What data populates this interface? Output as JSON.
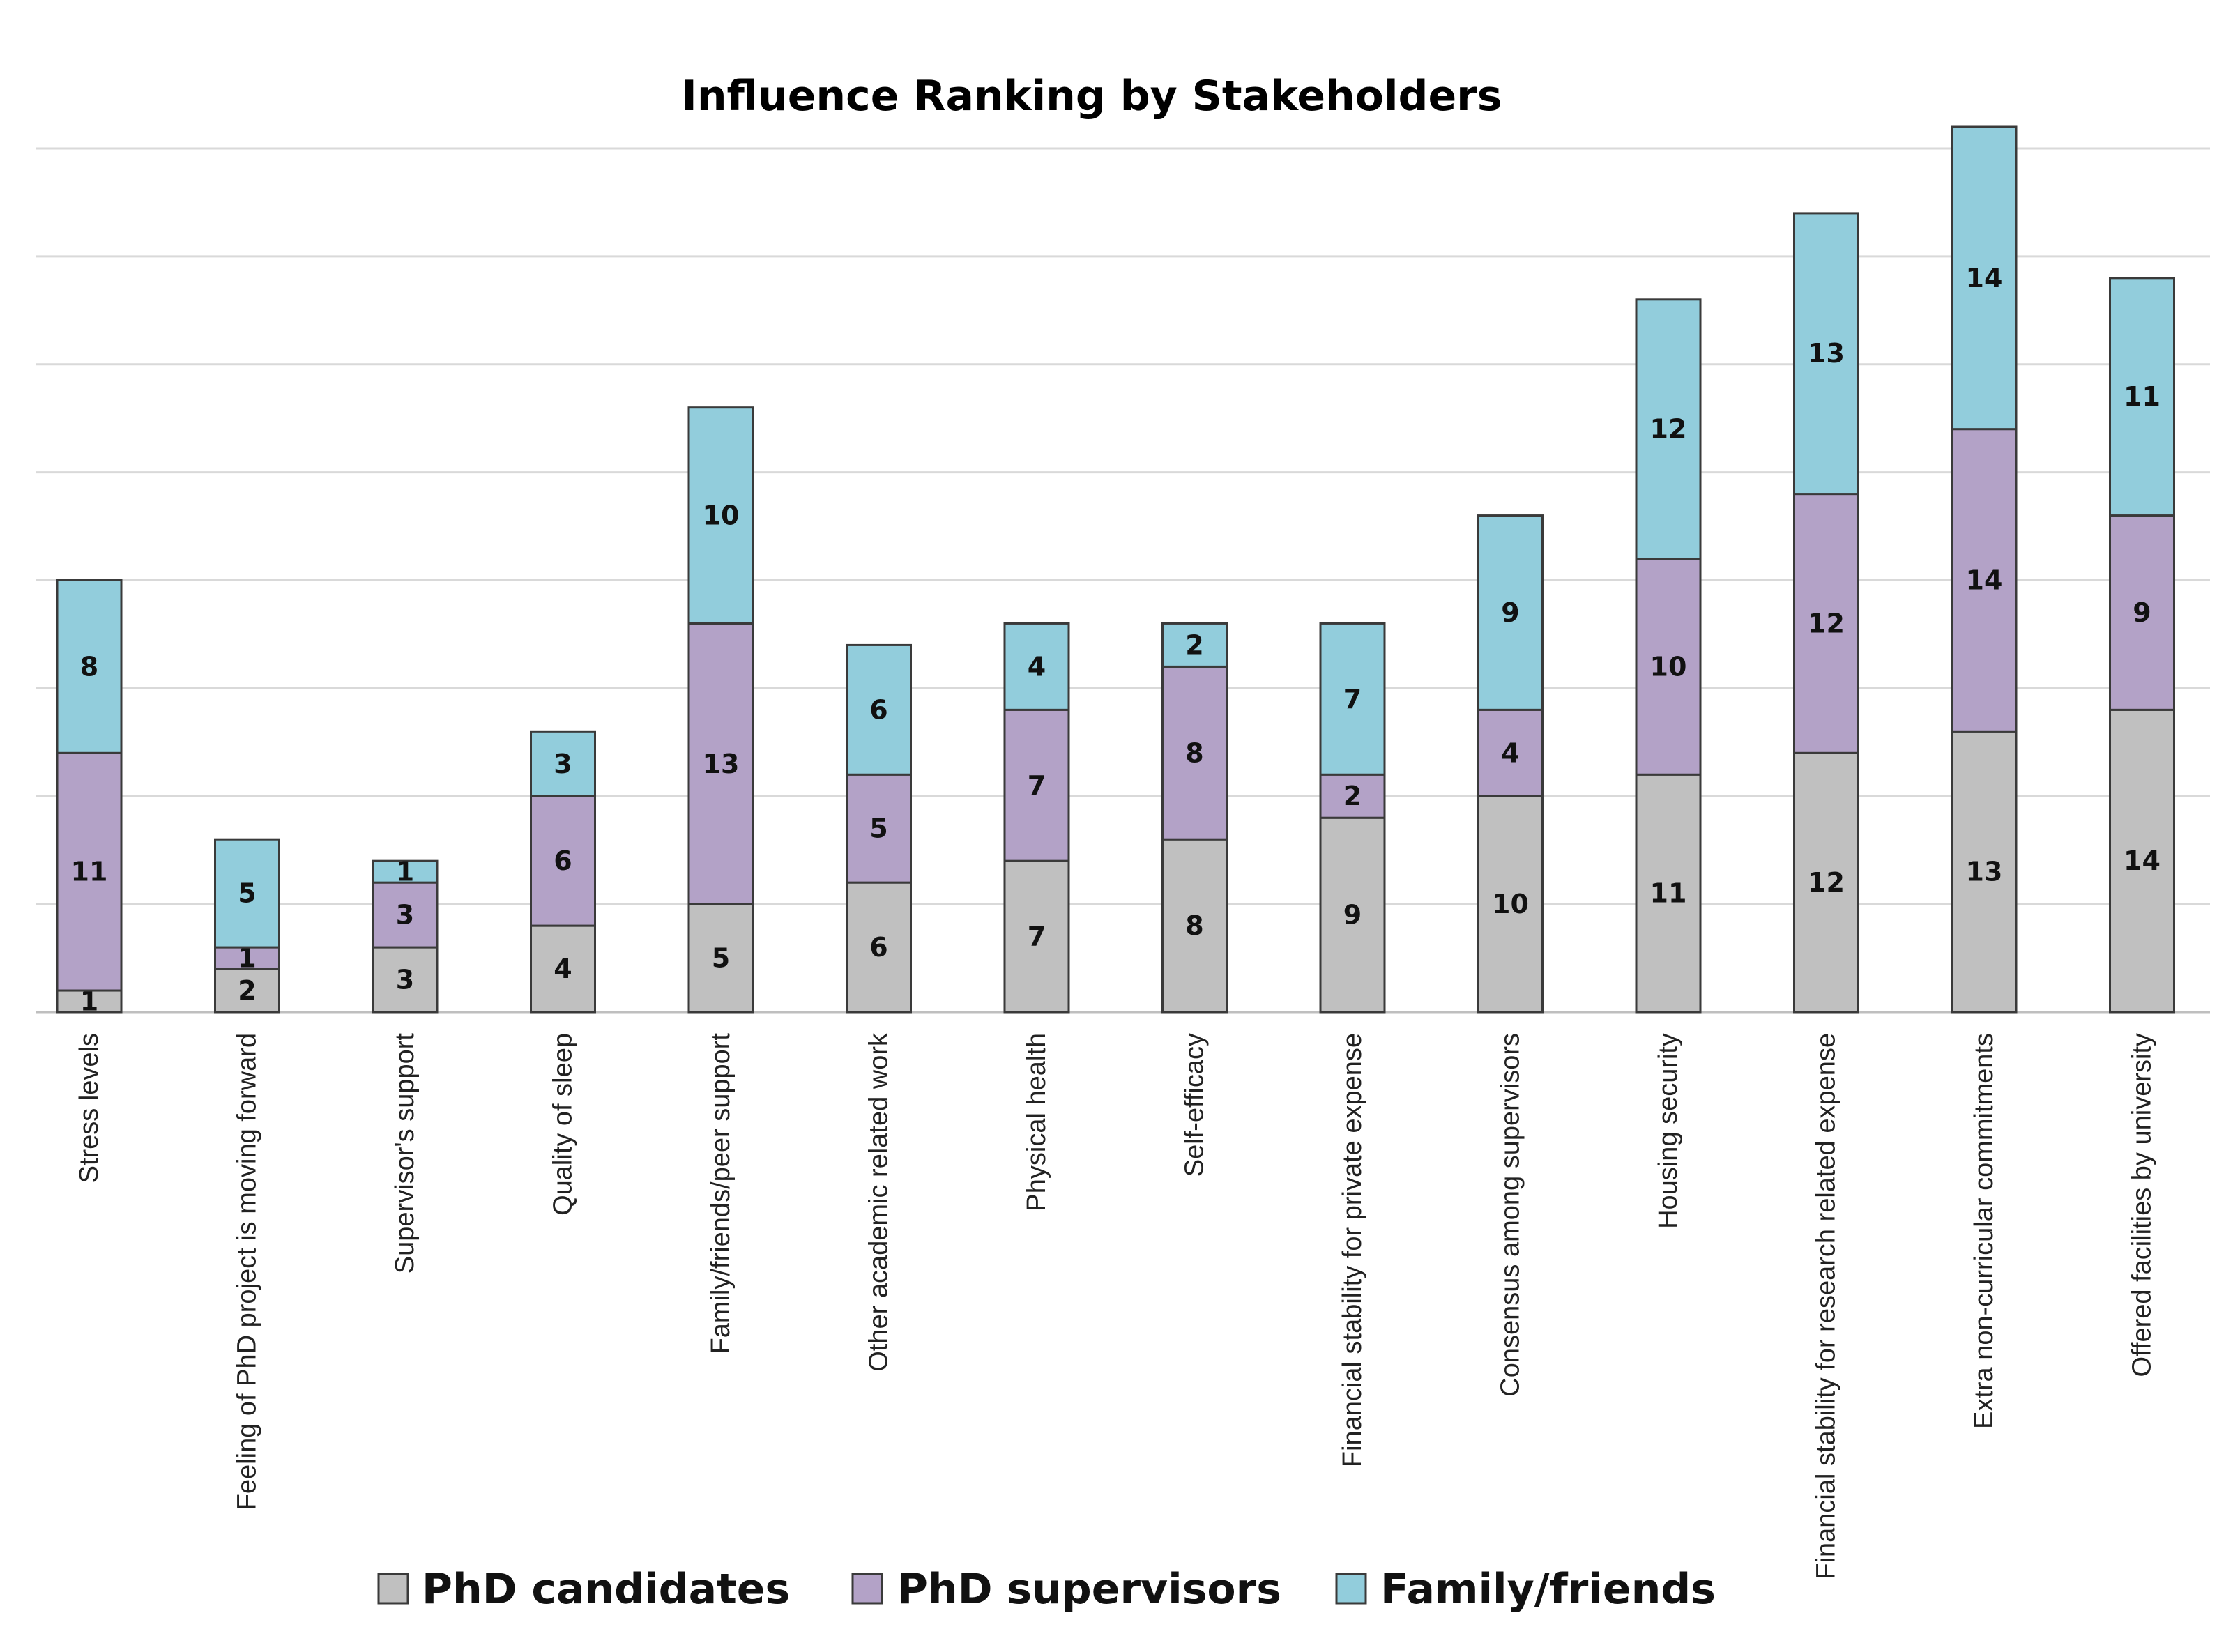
{
  "chart_data": {
    "type": "bar",
    "stacked": true,
    "title": "Influence Ranking by Stakeholders",
    "xlabel": "",
    "ylabel": "",
    "ylim": [
      0,
      41
    ],
    "grid": true,
    "legend_position": "bottom",
    "categories": [
      "Stress levels",
      "Feeling of PhD project is moving forward",
      "Supervisor's support",
      "Quality of sleep",
      "Family/friends/peer support",
      "Other academic related work",
      "Physical health",
      "Self-efficacy",
      "Financial stability for private expense",
      "Consensus among supervisors",
      "Housing security",
      "Financial stability for research related expense",
      "Extra non-curricular commitments",
      "Offered facilities by university"
    ],
    "series": [
      {
        "name": "PhD candidates",
        "color": "#c0c0c0",
        "values": [
          1,
          2,
          3,
          4,
          5,
          6,
          7,
          8,
          9,
          10,
          11,
          12,
          13,
          14
        ]
      },
      {
        "name": "PhD supervisors",
        "color": "#b3a2c7",
        "values": [
          11,
          1,
          3,
          6,
          13,
          5,
          7,
          8,
          2,
          4,
          10,
          12,
          14,
          9
        ]
      },
      {
        "name": "Family/friends",
        "color": "#92cddc",
        "values": [
          8,
          5,
          1,
          3,
          10,
          6,
          4,
          2,
          7,
          9,
          12,
          13,
          14,
          11
        ]
      }
    ]
  }
}
